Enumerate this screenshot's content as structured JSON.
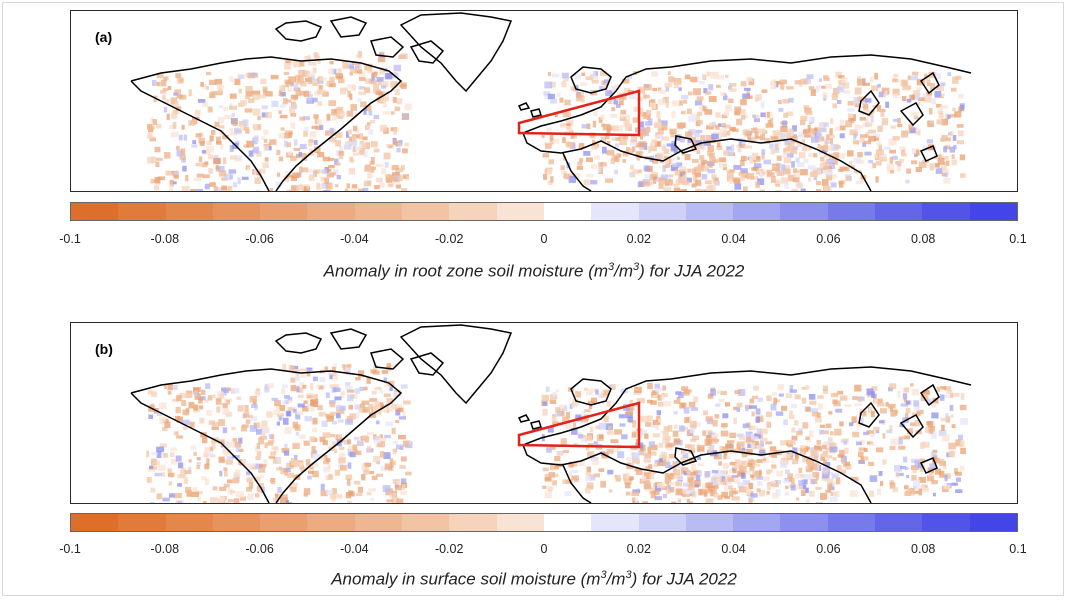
{
  "panels": [
    {
      "label": "(a)",
      "caption_pre": "Anomaly in root zone soil moisture (m",
      "caption_sup1": "3",
      "caption_mid": "/m",
      "caption_sup2": "3",
      "caption_post": ") for JJA 2022"
    },
    {
      "label": "(b)",
      "caption_pre": "Anomaly in surface soil moisture (m",
      "caption_sup1": "3",
      "caption_mid": "/m",
      "caption_sup2": "3",
      "caption_post": ") for JJA 2022"
    }
  ],
  "colorbar": {
    "ticks": [
      "-0.1",
      "-0.08",
      "-0.06",
      "-0.04",
      "-0.02",
      "0",
      "0.02",
      "0.04",
      "0.06",
      "0.08",
      "0.1"
    ],
    "min": -0.1,
    "max": 0.1,
    "steps": 20,
    "colors_dry": [
      "#dd6f2a",
      "#e07b3b",
      "#e3874c",
      "#e6935d",
      "#e99f6e",
      "#ecab80",
      "#efb791",
      "#f2c4a4",
      "#f6d3bb",
      "#f9e3d4"
    ],
    "colors_wet": [
      "#ffffff",
      "#e5e6fb",
      "#cfd1f7",
      "#b9bbf4",
      "#a3a6f0",
      "#8d90ec",
      "#777bea",
      "#6367e7",
      "#5154e6",
      "#4345e8"
    ]
  },
  "colors": {
    "region_highlight": "#e2231a",
    "coastline": "#000000",
    "dry_anomaly": "#d9733a",
    "wet_anomaly": "#5a5fe0"
  }
}
